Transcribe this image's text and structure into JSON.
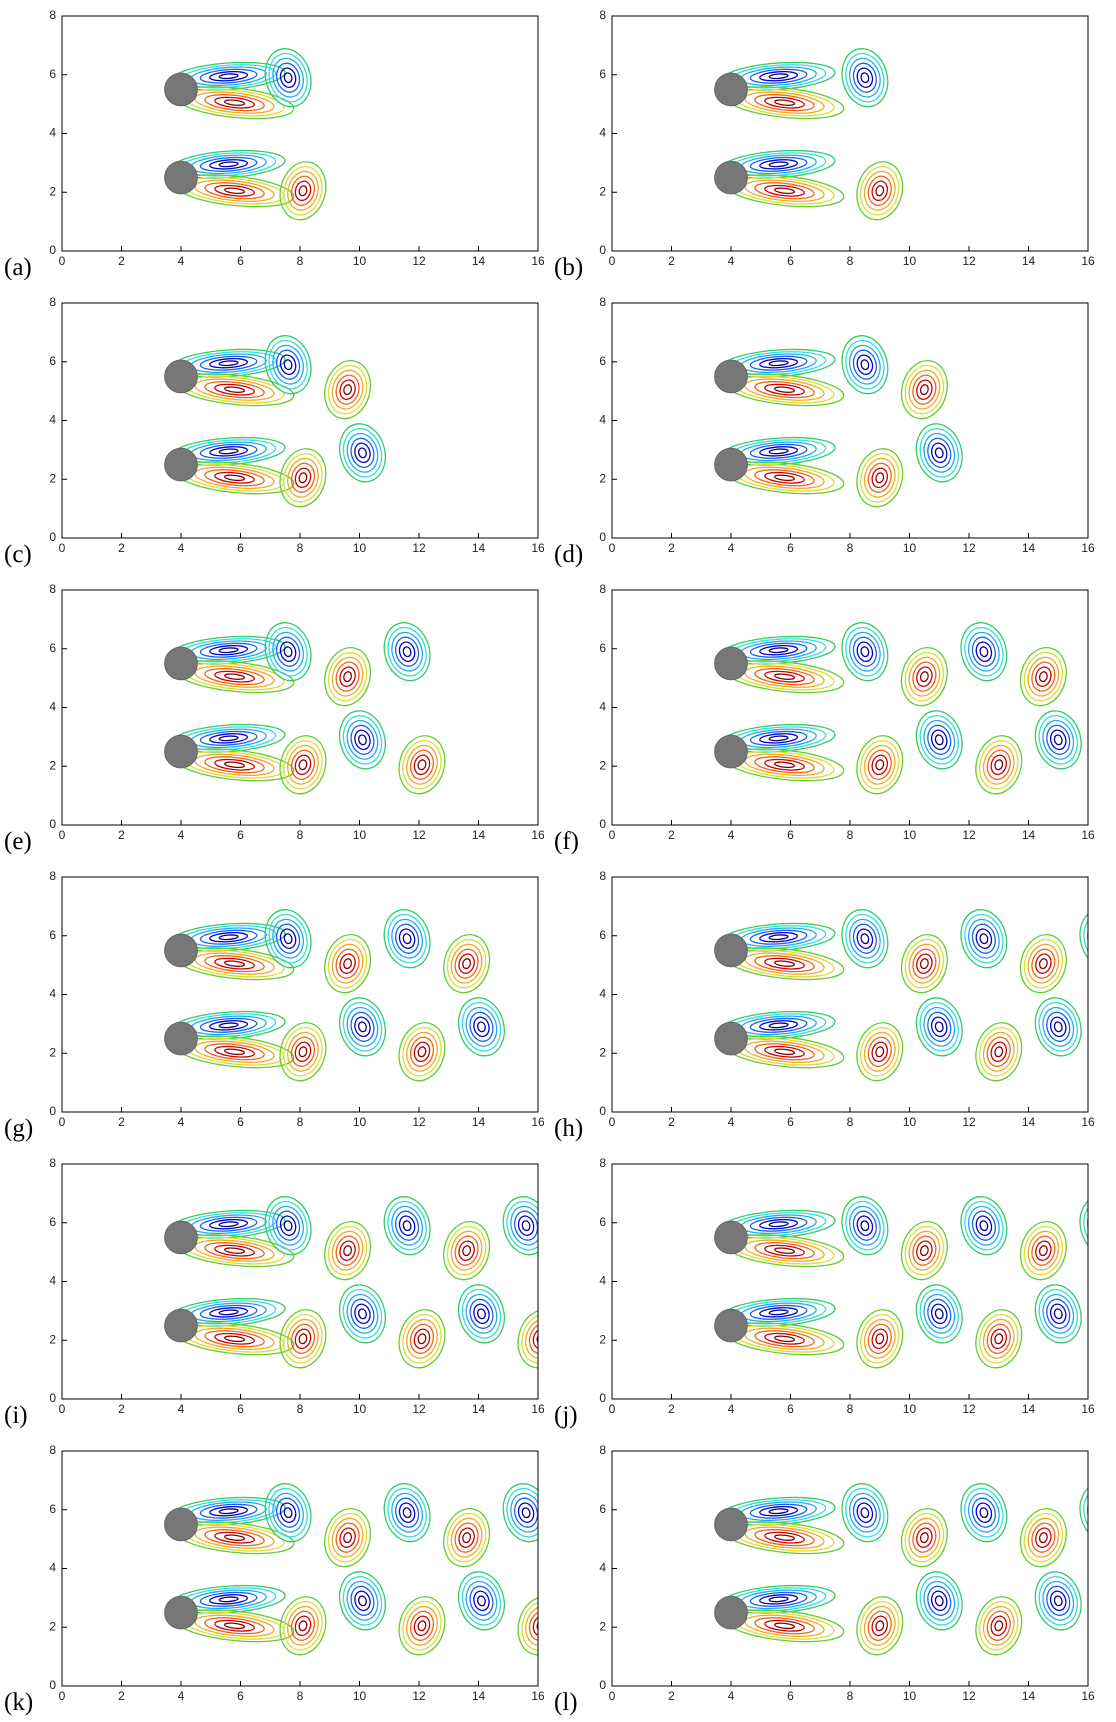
{
  "axes": {
    "xlim": [
      0,
      16
    ],
    "ylim": [
      0,
      8
    ],
    "xticks": [
      0,
      2,
      4,
      6,
      8,
      10,
      12,
      14,
      16
    ],
    "yticks": [
      0,
      2,
      4,
      6,
      8
    ]
  },
  "panels": [
    {
      "label": "(a)"
    },
    {
      "label": "(b)"
    },
    {
      "label": "(c)"
    },
    {
      "label": "(d)"
    },
    {
      "label": "(e)"
    },
    {
      "label": "(f)"
    },
    {
      "label": "(g)"
    },
    {
      "label": "(h)"
    },
    {
      "label": "(i)"
    },
    {
      "label": "(j)"
    },
    {
      "label": "(k)"
    },
    {
      "label": "(l)"
    }
  ]
}
